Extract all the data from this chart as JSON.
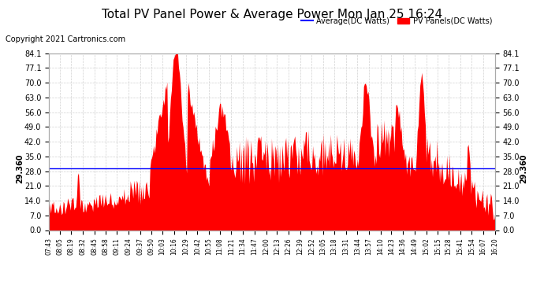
{
  "title": "Total PV Panel Power & Average Power Mon Jan 25 16:24",
  "copyright": "Copyright 2021 Cartronics.com",
  "legend_avg": "Average(DC Watts)",
  "legend_pv": "PV Panels(DC Watts)",
  "average_value": 29.36,
  "y_ticks": [
    0.0,
    7.0,
    14.0,
    21.0,
    28.0,
    35.0,
    42.0,
    49.0,
    56.0,
    63.0,
    70.0,
    77.1,
    84.1
  ],
  "fill_color": "#ff0000",
  "line_color": "#0000ff",
  "background_color": "#ffffff",
  "grid_color": "#cccccc",
  "x_labels": [
    "07:43",
    "08:05",
    "08:19",
    "08:32",
    "08:45",
    "08:58",
    "09:11",
    "09:24",
    "09:37",
    "09:50",
    "10:03",
    "10:16",
    "10:29",
    "10:42",
    "10:55",
    "11:08",
    "11:21",
    "11:34",
    "11:47",
    "12:00",
    "12:13",
    "12:26",
    "12:39",
    "12:52",
    "13:05",
    "13:18",
    "13:31",
    "13:44",
    "13:57",
    "14:10",
    "14:23",
    "14:36",
    "14:49",
    "15:02",
    "15:15",
    "15:28",
    "15:41",
    "15:54",
    "16:07",
    "16:20"
  ],
  "n_points": 500,
  "seed": 42
}
